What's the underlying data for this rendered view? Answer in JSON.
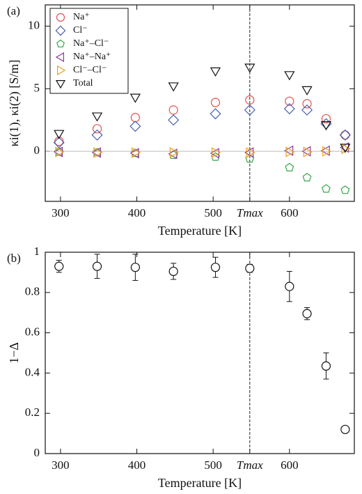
{
  "chart_data": [
    {
      "type": "scatter",
      "panel_label": "(a)",
      "xlabel": "Temperature [K]",
      "ylabel": "κi(1), κi(2) [S/m]",
      "x": [
        298,
        348,
        398,
        448,
        503,
        548,
        600,
        623,
        648,
        673
      ],
      "xlim": [
        280,
        685
      ],
      "xticks": [
        300,
        400,
        500,
        {
          "value": 548,
          "label": "Tmax",
          "line": "dashed"
        },
        600
      ],
      "ylim": [
        -4,
        11.7
      ],
      "yticks": [
        0,
        5,
        10
      ],
      "zero_line": true,
      "legend": "upper left",
      "series": [
        {
          "name": "Na⁺",
          "color": "#e0524f",
          "marker": "circle",
          "values": [
            0.8,
            1.8,
            2.7,
            3.3,
            3.9,
            4.1,
            4.0,
            3.8,
            2.6,
            1.3
          ]
        },
        {
          "name": "Cl⁻",
          "color": "#4a5fb0",
          "marker": "diamond",
          "values": [
            0.7,
            1.3,
            2.0,
            2.5,
            3.0,
            3.3,
            3.4,
            3.3,
            2.2,
            1.3
          ]
        },
        {
          "name": "Na⁺–Cl⁻",
          "color": "#3aa64a",
          "marker": "pentagon",
          "values": [
            -0.05,
            -0.1,
            -0.15,
            -0.3,
            -0.45,
            -0.6,
            -1.3,
            -2.1,
            -3.0,
            -3.1
          ]
        },
        {
          "name": "Na⁺–Na⁺",
          "color": "#8a3a9a",
          "marker": "triangle-left",
          "values": [
            -0.05,
            -0.1,
            -0.15,
            -0.2,
            -0.15,
            -0.1,
            0.05,
            0.0,
            0.05,
            0.3
          ]
        },
        {
          "name": "Cl⁻–Cl⁻",
          "color": "#f0a020",
          "marker": "triangle-right",
          "values": [
            -0.05,
            -0.1,
            -0.1,
            -0.1,
            -0.1,
            -0.1,
            -0.05,
            -0.05,
            0.0,
            0.2
          ]
        },
        {
          "name": "Total",
          "color": "#111111",
          "marker": "triangle-down",
          "values": [
            1.4,
            2.8,
            4.3,
            5.2,
            6.4,
            6.7,
            6.1,
            4.9,
            2.1,
            0.3
          ]
        }
      ]
    },
    {
      "type": "scatter",
      "panel_label": "(b)",
      "xlabel": "Temperature [K]",
      "ylabel": "1−Δ",
      "x": [
        298,
        348,
        398,
        448,
        503,
        548,
        600,
        623,
        648,
        673
      ],
      "xlim": [
        280,
        685
      ],
      "xticks": [
        300,
        400,
        500,
        {
          "value": 548,
          "label": "Tmax",
          "line": "dashed"
        },
        600
      ],
      "ylim": [
        0,
        1
      ],
      "yticks": [
        0,
        0.2,
        0.4,
        0.6,
        0.8,
        1
      ],
      "series": [
        {
          "color": "#111111",
          "marker": "circle",
          "values": [
            0.93,
            0.93,
            0.925,
            0.905,
            0.925,
            0.92,
            0.83,
            0.695,
            0.435,
            0.12
          ],
          "errors": [
            0.03,
            0.06,
            0.065,
            0.04,
            0.05,
            0.02,
            0.075,
            0.03,
            0.065,
            0.01
          ]
        }
      ]
    }
  ]
}
